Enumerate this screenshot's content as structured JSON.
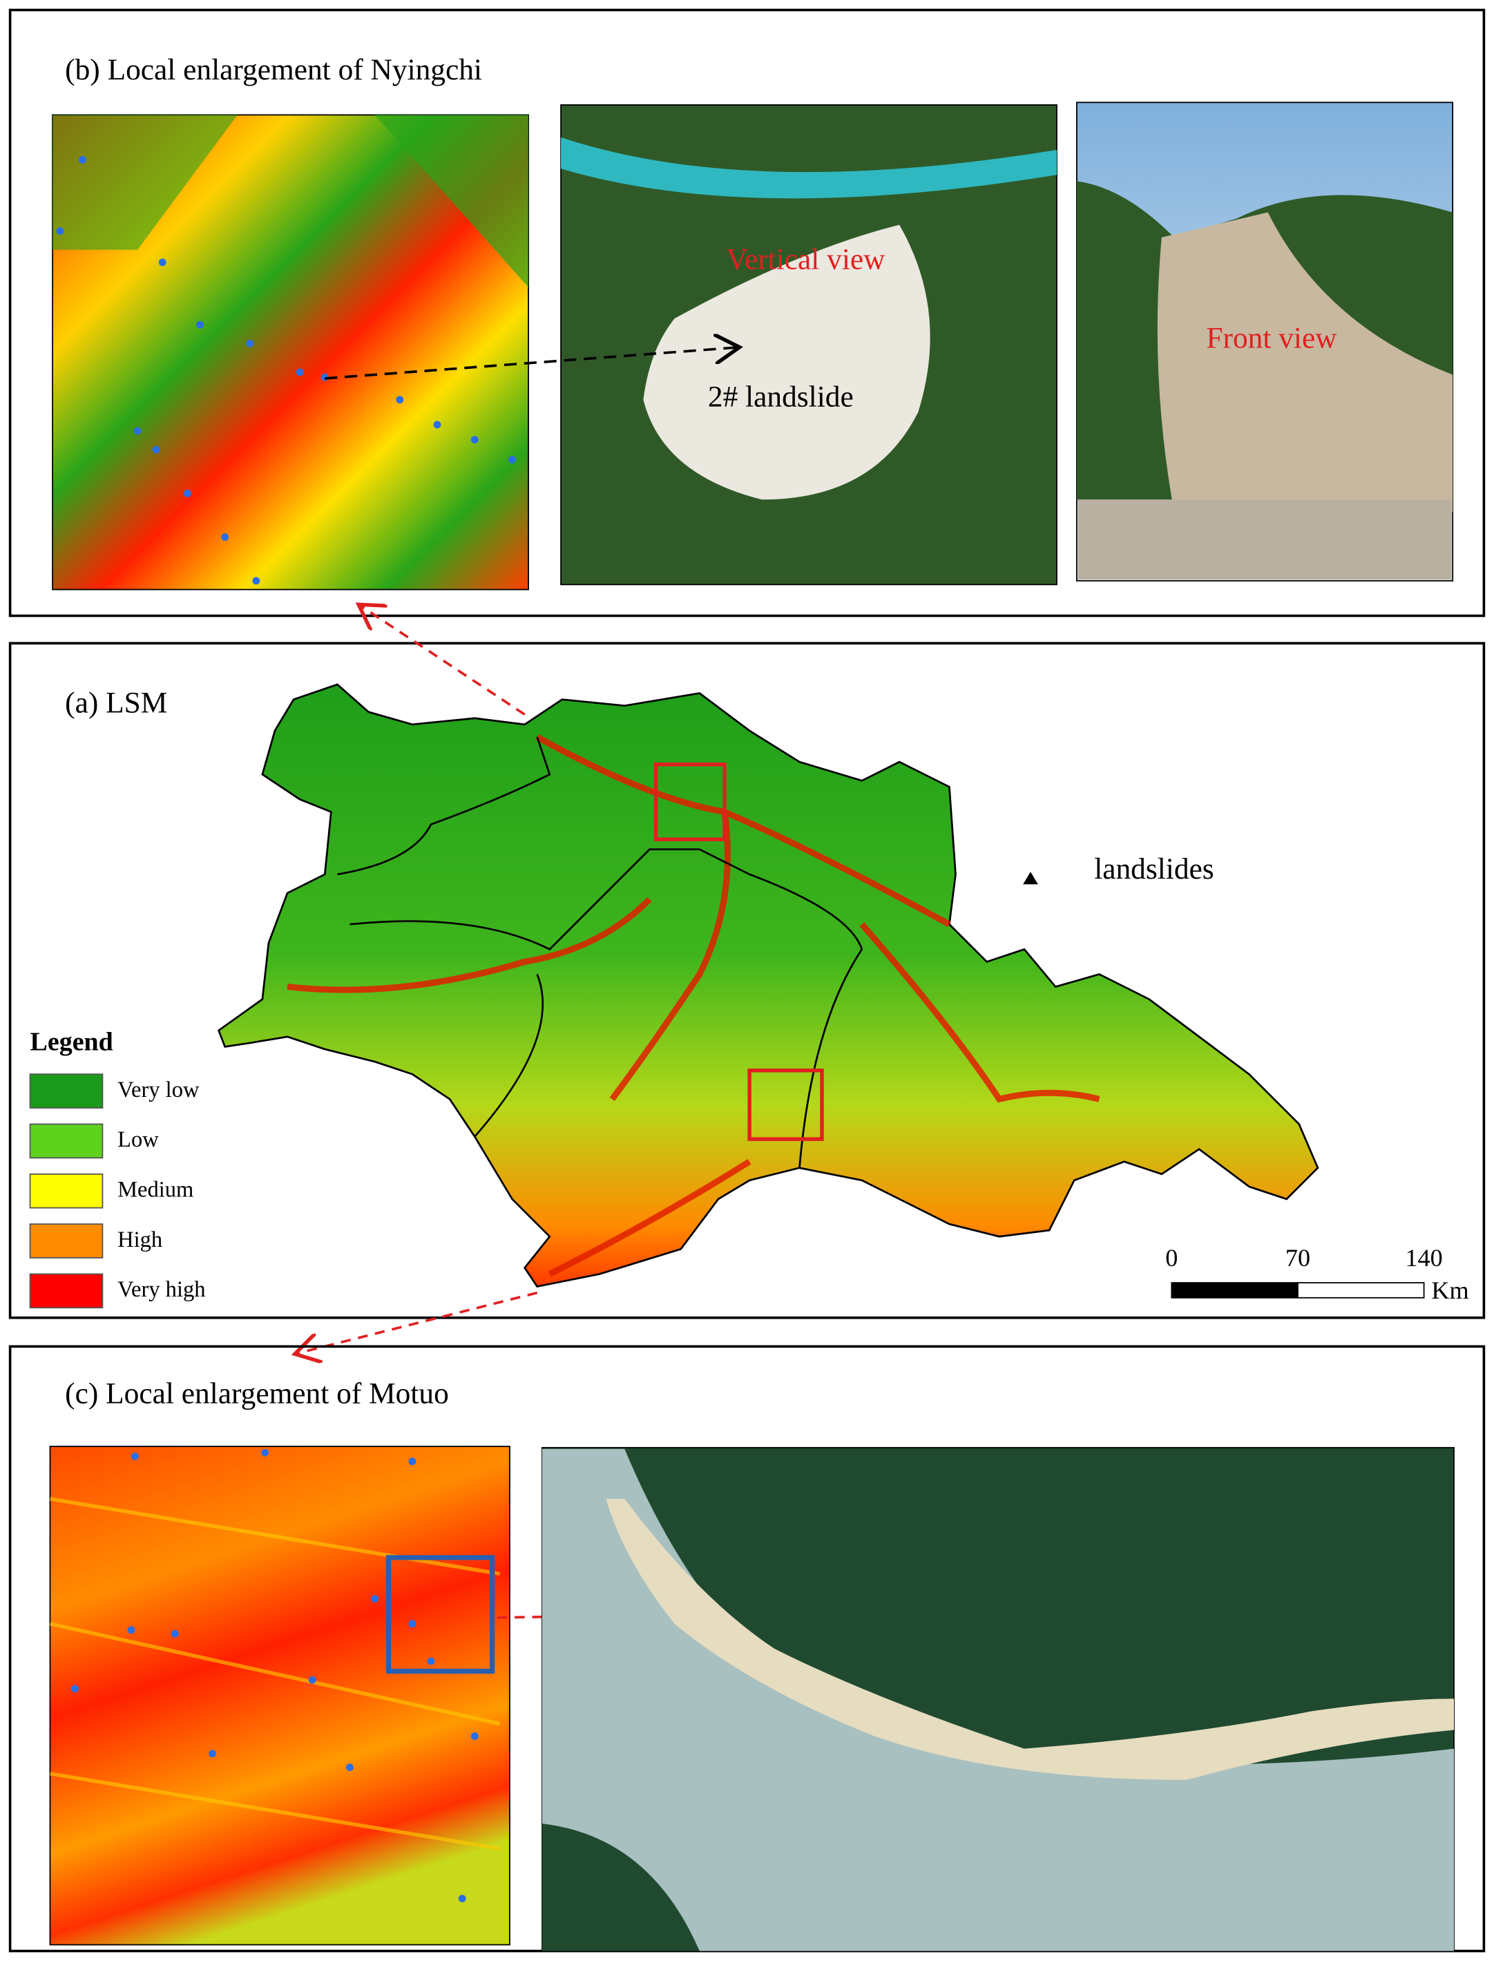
{
  "panel_b": {
    "title": "(b) Local enlargement of Nyingchi",
    "vertical_view": "Vertical view",
    "landslide_label": "2# landslide",
    "front_view": "Front view"
  },
  "panel_a": {
    "title": "(a) LSM",
    "point_legend": "landslides",
    "legend": {
      "title": "Legend",
      "items": [
        {
          "label": "Very low",
          "color": "#1a9a1a"
        },
        {
          "label": "Low",
          "color": "#5fd21e"
        },
        {
          "label": "Medium",
          "color": "#ffff00"
        },
        {
          "label": "High",
          "color": "#ff8c00"
        },
        {
          "label": "Very high",
          "color": "#ff0000"
        }
      ]
    },
    "scale_bar": {
      "ticks": [
        0,
        70,
        140
      ],
      "unit": "Km"
    }
  },
  "panel_c": {
    "title": "(c) Local enlargement of Motuo"
  }
}
